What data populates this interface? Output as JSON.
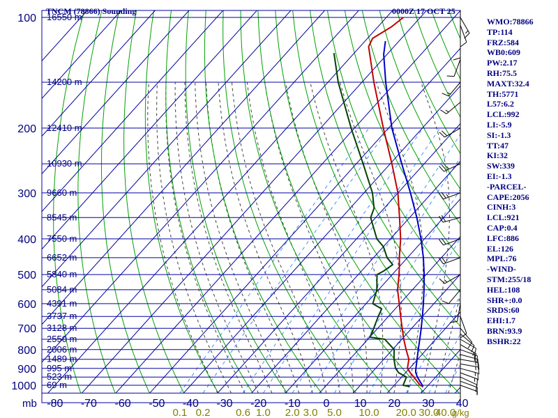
{
  "header": {
    "title": "TNCM (78866) Sounding",
    "datetime": "0000Z 17 OCT 25"
  },
  "indices": [
    "WMO:78866",
    "TP:114",
    "FRZ:584",
    "WB0:609",
    "PW:2.17",
    "RH:75.5",
    "MAXT:32.4",
    "TH:5771",
    "L57:6.2",
    "LCL:992",
    "LI:-5.9",
    "SI:-1.3",
    "TT:47",
    "KI:32",
    "SW:339",
    "EI:-1.3",
    "-PARCEL-",
    "CAPE:2056",
    "CINH:3",
    "LCL:921",
    "CAP:0.4",
    "LFC:886",
    "EL:126",
    "MPL:76",
    "-WIND-",
    "STM:255/18",
    "HEL:108",
    "SHR+:0.0",
    "SRDS:60",
    "EHI:1.7",
    "BRN:93.9",
    "BSHR:22"
  ],
  "colors": {
    "grid": "#0000a0",
    "isotherm": "#0000a0",
    "dry_adiabat": "#00a000",
    "moist_adiabat": "#404040",
    "mixing_ratio": "#4090ff",
    "temperature": "#c00000",
    "dewpoint": "#004000",
    "parcel": "#0000c0",
    "wind": "#000000",
    "pressure_labels": "#000080",
    "height_labels": "#000080",
    "temp_labels": "#000080",
    "mixratio_labels": "#808000"
  },
  "chart_data": {
    "type": "line",
    "title": "TNCM (78866) Sounding",
    "xlabel": "",
    "ylabel": "",
    "pressure_axis": {
      "unit_label": "mb",
      "ticks": [
        100,
        200,
        300,
        400,
        500,
        600,
        700,
        800,
        900,
        1000
      ]
    },
    "temperature_axis": {
      "ticks": [
        -80,
        -70,
        -60,
        -50,
        -40,
        -30,
        -20,
        -10,
        0,
        10,
        20,
        30,
        40
      ],
      "tick_labels": [
        "-80",
        "-70",
        "-60",
        "-50",
        "-40",
        "-30",
        "-20",
        "-10",
        "0",
        "10",
        "20",
        "30",
        "40"
      ]
    },
    "height_labels": [
      {
        "p": 100,
        "label": "16550 m"
      },
      {
        "p": 150,
        "label": "14200 m"
      },
      {
        "p": 200,
        "label": "12410 m"
      },
      {
        "p": 250,
        "label": "10930 m"
      },
      {
        "p": 300,
        "label": "9660 m"
      },
      {
        "p": 350,
        "label": "8545 m"
      },
      {
        "p": 400,
        "label": "7550 m"
      },
      {
        "p": 450,
        "label": "6652 m"
      },
      {
        "p": 500,
        "label": "5840 m"
      },
      {
        "p": 550,
        "label": "5084 m"
      },
      {
        "p": 600,
        "label": "4391 m"
      },
      {
        "p": 650,
        "label": "3737 m"
      },
      {
        "p": 700,
        "label": "3128 m"
      },
      {
        "p": 750,
        "label": "2550 m"
      },
      {
        "p": 800,
        "label": "2006 m"
      },
      {
        "p": 850,
        "label": "1489 m"
      },
      {
        "p": 900,
        "label": "995 m"
      },
      {
        "p": 950,
        "label": "523 m"
      },
      {
        "p": 1000,
        "label": "69 m"
      }
    ],
    "mixing_ratio_labels": [
      {
        "w": 0.1,
        "label": "0.1"
      },
      {
        "w": 0.2,
        "label": "0.2"
      },
      {
        "w": 0.6,
        "label": "0.6"
      },
      {
        "w": 1.0,
        "label": "1.0"
      },
      {
        "w": 2.0,
        "label": "2.0"
      },
      {
        "w": 3.0,
        "label": "3.0"
      },
      {
        "w": 5.0,
        "label": "5.0"
      },
      {
        "w": 10.0,
        "label": "10.0"
      },
      {
        "w": 20.0,
        "label": "20.0"
      },
      {
        "w": 30.0,
        "label": "30.0"
      },
      {
        "w": 40.0,
        "label": "40.0"
      }
    ],
    "mixing_ratio_unit": "g/kg",
    "series": [
      {
        "key": "temperature",
        "points": [
          [
            1008,
            28.8
          ],
          [
            1000,
            27.6
          ],
          [
            950,
            23.6
          ],
          [
            925,
            21.4
          ],
          [
            900,
            19.4
          ],
          [
            850,
            17.4
          ],
          [
            800,
            14.0
          ],
          [
            750,
            10.6
          ],
          [
            700,
            7.2
          ],
          [
            650,
            3.6
          ],
          [
            600,
            -0.2
          ],
          [
            550,
            -4.4
          ],
          [
            500,
            -8.0
          ],
          [
            470,
            -10.5
          ],
          [
            450,
            -12.4
          ],
          [
            400,
            -17.0
          ],
          [
            350,
            -23.0
          ],
          [
            300,
            -30.0
          ],
          [
            250,
            -39.5
          ],
          [
            200,
            -51.5
          ],
          [
            150,
            -66.5
          ],
          [
            120,
            -77.5
          ],
          [
            114,
            -78.5
          ],
          [
            106,
            -76.0
          ],
          [
            100,
            -75.0
          ]
        ]
      },
      {
        "key": "dewpoint",
        "points": [
          [
            1008,
            24.8
          ],
          [
            1000,
            22.6
          ],
          [
            975,
            22.0
          ],
          [
            950,
            21.4
          ],
          [
            925,
            18.0
          ],
          [
            900,
            15.9
          ],
          [
            850,
            13.0
          ],
          [
            800,
            10.5
          ],
          [
            750,
            5.0
          ],
          [
            740,
            0.0
          ],
          [
            720,
            -0.5
          ],
          [
            700,
            -1.2
          ],
          [
            650,
            -3.0
          ],
          [
            620,
            -4.0
          ],
          [
            600,
            -8.0
          ],
          [
            550,
            -10.5
          ],
          [
            500,
            -14.5
          ],
          [
            490,
            -13.5
          ],
          [
            470,
            -12.5
          ],
          [
            450,
            -16.0
          ],
          [
            420,
            -20.0
          ],
          [
            400,
            -24.0
          ],
          [
            350,
            -31.5
          ],
          [
            330,
            -33.0
          ],
          [
            300,
            -37.5
          ],
          [
            250,
            -48.0
          ],
          [
            200,
            -61.0
          ],
          [
            150,
            -77.0
          ],
          [
            125,
            -86.0
          ]
        ]
      },
      {
        "key": "parcel",
        "points": [
          [
            1008,
            28.8
          ],
          [
            950,
            24.6
          ],
          [
            921,
            22.8
          ],
          [
            900,
            21.9
          ],
          [
            850,
            19.8
          ],
          [
            800,
            17.6
          ],
          [
            750,
            15.3
          ],
          [
            700,
            12.8
          ],
          [
            650,
            10.0
          ],
          [
            600,
            6.9
          ],
          [
            550,
            3.4
          ],
          [
            500,
            -0.6
          ],
          [
            450,
            -5.3
          ],
          [
            400,
            -11.0
          ],
          [
            350,
            -17.9
          ],
          [
            300,
            -26.3
          ],
          [
            250,
            -36.6
          ],
          [
            200,
            -49.0
          ],
          [
            150,
            -63.0
          ],
          [
            126,
            -71.0
          ],
          [
            116,
            -74.0
          ]
        ]
      }
    ],
    "wind_barbs": [
      {
        "p": 1000,
        "dir": 110,
        "spd": 8
      },
      {
        "p": 975,
        "dir": 110,
        "spd": 10
      },
      {
        "p": 950,
        "dir": 115,
        "spd": 12
      },
      {
        "p": 925,
        "dir": 110,
        "spd": 15
      },
      {
        "p": 900,
        "dir": 105,
        "spd": 15
      },
      {
        "p": 875,
        "dir": 100,
        "spd": 15
      },
      {
        "p": 850,
        "dir": 100,
        "spd": 15
      },
      {
        "p": 825,
        "dir": 105,
        "spd": 15
      },
      {
        "p": 800,
        "dir": 110,
        "spd": 15
      },
      {
        "p": 775,
        "dir": 120,
        "spd": 15
      },
      {
        "p": 750,
        "dir": 120,
        "spd": 10
      },
      {
        "p": 725,
        "dir": 130,
        "spd": 10
      },
      {
        "p": 700,
        "dir": 140,
        "spd": 10
      },
      {
        "p": 650,
        "dir": 160,
        "spd": 10
      },
      {
        "p": 600,
        "dir": 190,
        "spd": 10
      },
      {
        "p": 550,
        "dir": 220,
        "spd": 10
      },
      {
        "p": 500,
        "dir": 240,
        "spd": 15
      },
      {
        "p": 450,
        "dir": 250,
        "spd": 20
      },
      {
        "p": 400,
        "dir": 250,
        "spd": 20
      },
      {
        "p": 350,
        "dir": 255,
        "spd": 20
      },
      {
        "p": 300,
        "dir": 250,
        "spd": 25
      },
      {
        "p": 250,
        "dir": 245,
        "spd": 25
      },
      {
        "p": 200,
        "dir": 240,
        "spd": 20
      },
      {
        "p": 170,
        "dir": 230,
        "spd": 15
      },
      {
        "p": 150,
        "dir": 220,
        "spd": 15
      },
      {
        "p": 130,
        "dir": 200,
        "spd": 10
      },
      {
        "p": 115,
        "dir": 180,
        "spd": 10
      },
      {
        "p": 105,
        "dir": 160,
        "spd": 10
      },
      {
        "p": 100,
        "dir": 150,
        "spd": 15
      }
    ]
  }
}
